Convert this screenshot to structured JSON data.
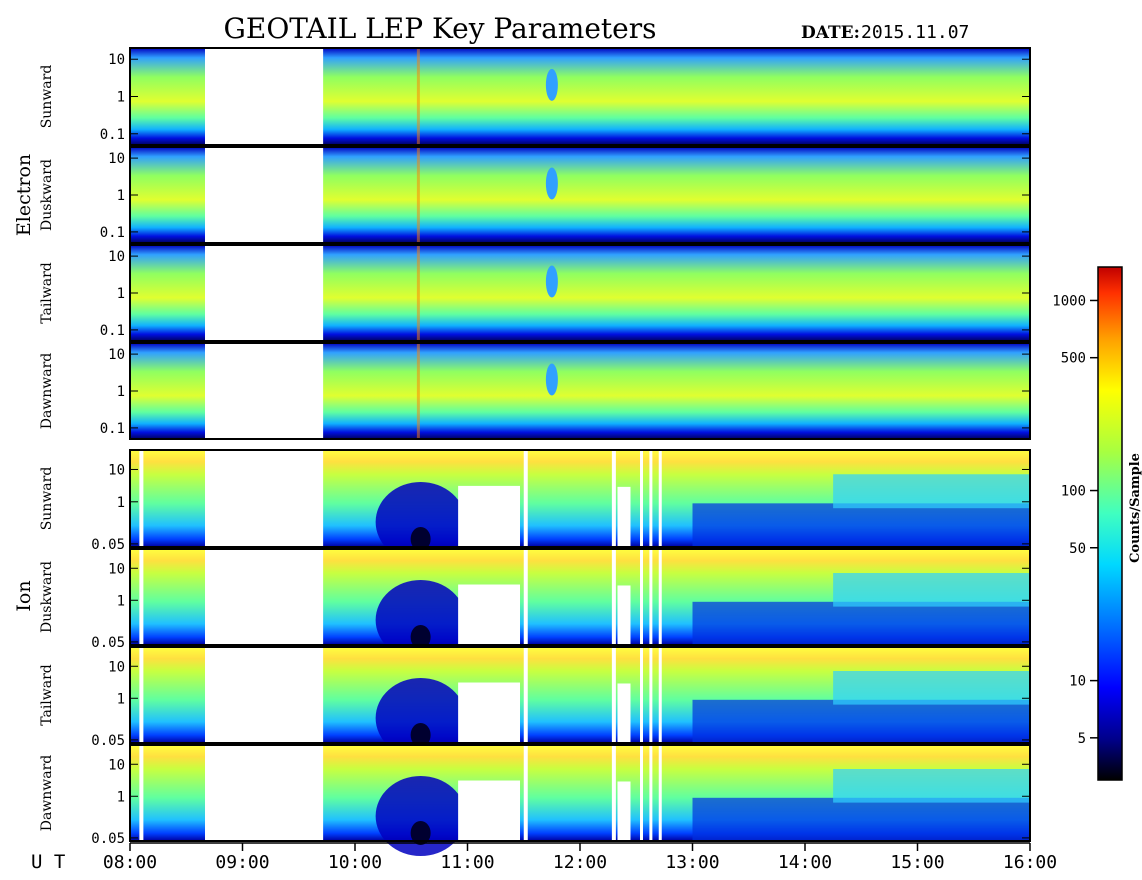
{
  "header": {
    "title": "GEOTAIL LEP Key Parameters",
    "date_label": "DATE:",
    "date_value": "2015.11.07"
  },
  "groups": {
    "electron": "Electron",
    "ion": "Ion"
  },
  "colorbar": {
    "label": "Counts/Sample",
    "ticks": [
      "5",
      "10",
      "50",
      "100",
      "500",
      "1000"
    ],
    "tick_values": [
      5,
      10,
      50,
      100,
      500,
      1000
    ],
    "range": [
      3,
      1500
    ],
    "scale": "log",
    "colors": [
      "#000000",
      "#00008b",
      "#0000ff",
      "#0070ff",
      "#00d8ff",
      "#40ffc0",
      "#a8ff40",
      "#ffff00",
      "#ffa000",
      "#ff3000",
      "#c00000"
    ]
  },
  "xaxis": {
    "prefix": "U T",
    "ticks": [
      "08:00",
      "09:00",
      "10:00",
      "11:00",
      "12:00",
      "13:00",
      "14:00",
      "15:00",
      "16:00"
    ]
  },
  "chart_data": {
    "type": "heatmap",
    "title": "GEOTAIL LEP Key Parameters",
    "date": "2015.11.07",
    "x_range": [
      "08:00",
      "16:00"
    ],
    "x_unit": "UT",
    "data_gap": [
      "08:40",
      "09:43"
    ],
    "ion_gaps": [
      [
        "09:05",
        "09:06"
      ],
      [
        "10:55",
        "11:28"
      ],
      [
        "12:20",
        "12:40"
      ]
    ],
    "panels": [
      {
        "group": "Electron",
        "direction": "Sunward",
        "y_ticks": [
          "10",
          "1",
          "0.1"
        ],
        "y_range": [
          0.05,
          20
        ],
        "y_scale": "log"
      },
      {
        "group": "Electron",
        "direction": "Duskward",
        "y_ticks": [
          "10",
          "1",
          "0.1"
        ],
        "y_range": [
          0.05,
          20
        ],
        "y_scale": "log"
      },
      {
        "group": "Electron",
        "direction": "Tailward",
        "y_ticks": [
          "10",
          "1",
          "0.1"
        ],
        "y_range": [
          0.05,
          20
        ],
        "y_scale": "log"
      },
      {
        "group": "Electron",
        "direction": "Dawnward",
        "y_ticks": [
          "10",
          "1",
          "0.1"
        ],
        "y_range": [
          0.05,
          20
        ],
        "y_scale": "log"
      },
      {
        "group": "Ion",
        "direction": "Sunward",
        "y_ticks": [
          "10",
          "1",
          "0.05"
        ],
        "y_range": [
          0.04,
          40
        ],
        "y_scale": "log"
      },
      {
        "group": "Ion",
        "direction": "Duskward",
        "y_ticks": [
          "10",
          "1",
          "0.05"
        ],
        "y_range": [
          0.04,
          40
        ],
        "y_scale": "log"
      },
      {
        "group": "Ion",
        "direction": "Tailward",
        "y_ticks": [
          "10",
          "1",
          "0.05"
        ],
        "y_range": [
          0.04,
          40
        ],
        "y_scale": "log"
      },
      {
        "group": "Ion",
        "direction": "Dawnward",
        "y_ticks": [
          "10",
          "1",
          "0.05"
        ],
        "y_range": [
          0.04,
          40
        ],
        "y_scale": "log"
      }
    ]
  }
}
